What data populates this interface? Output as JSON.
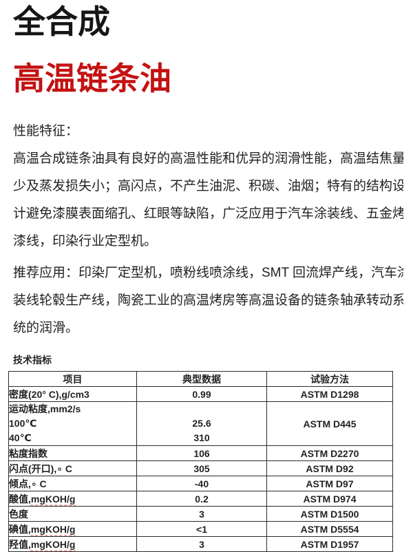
{
  "page": {
    "title": "全合成",
    "subtitle": "高温链条油"
  },
  "colors": {
    "title_black": "#161616",
    "subtitle_red": "#c31212",
    "spellcheck_wavy_red": "#e05a5a",
    "table_border": "#2b2b2b"
  },
  "sections": {
    "performance": {
      "heading": "性能特征：",
      "lines": [
        "高温合成链条油具有良好的高温性能和优异的润滑性能，高温结焦量",
        "少及蒸发损失小；高闪点，不产生油泥、积碳、油烟；特有的结构设",
        "计避免漆膜表面缩孔、红眼等缺陷，广泛应用于汽车涂装线、五金烤",
        "漆线，印染行业定型机。"
      ]
    },
    "application": {
      "lines": [
        "推荐应用：印染厂定型机，喷粉线喷涂线，SMT 回流焊产线，汽车涂",
        "装线轮毂生产线，陶瓷工业的高温烤房等高温设备的链条轴承转动系",
        "统的润滑。"
      ]
    }
  },
  "spec_table": {
    "title": "技术指标",
    "headers": [
      "项目",
      "典型数据",
      "试验方法"
    ],
    "rows": [
      {
        "item": "密度(20° C),g/cm3",
        "value": "0.99",
        "method": "ASTM D1298"
      },
      {
        "item": [
          "运动粘度,mm2/s",
          "100℃",
          "40℃"
        ],
        "value": [
          "",
          "25.6",
          "310"
        ],
        "method": "ASTM D445"
      },
      {
        "item": "粘度指数",
        "value": "106",
        "method": "ASTM D2270"
      },
      {
        "item": "闪点(开口),∘ C",
        "value": "305",
        "method": "ASTM D92"
      },
      {
        "item": "倾点,∘ C",
        "value": "-40",
        "method": "ASTM D97"
      },
      {
        "item": "酸值",
        "item_wavy": ",mgKOH/g",
        "value": "0.2",
        "method": "ASTM D974"
      },
      {
        "item": "色度",
        "value": "3",
        "method": "ASTM D1500"
      },
      {
        "item": "碘值",
        "item_wavy": ",mgKOH/g",
        "value": "<1",
        "method": "ASTM D5554"
      },
      {
        "item": "羟值",
        "item_wavy": ",mgKOH/g",
        "value": "3",
        "method": "ASTM D1957"
      }
    ]
  }
}
